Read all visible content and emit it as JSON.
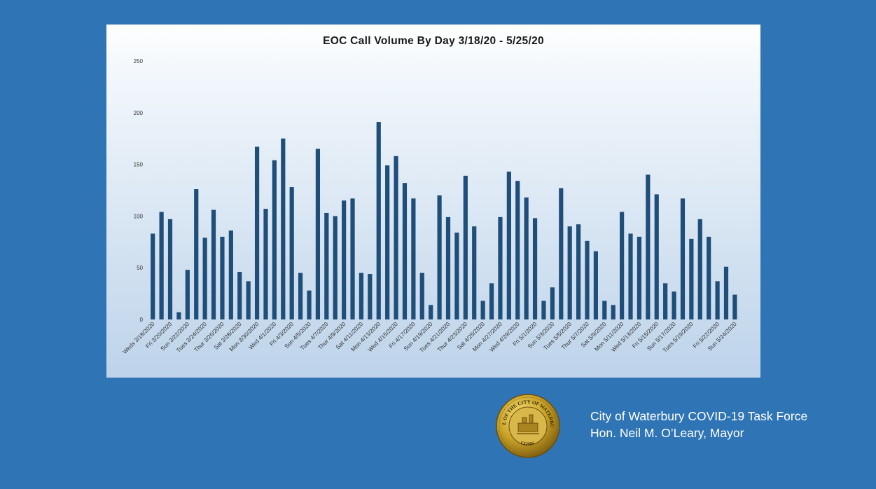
{
  "chart_data": {
    "type": "bar",
    "title": "EOC Call Volume By Day 3/18/20 - 5/25/20",
    "xlabel": "",
    "ylabel": "",
    "ylim": [
      0,
      250
    ],
    "yticks": [
      0,
      50,
      100,
      150,
      200,
      250
    ],
    "grid": false,
    "bar_color": "#1f4e79",
    "categories": [
      "3/18",
      "3/19",
      "3/20",
      "3/21",
      "3/22",
      "3/23",
      "3/24",
      "3/25",
      "3/26",
      "3/27",
      "3/28",
      "3/29",
      "3/30",
      "3/31",
      "4/1",
      "4/2",
      "4/3",
      "4/4",
      "4/5",
      "4/6",
      "4/7",
      "4/8",
      "4/9",
      "4/10",
      "4/11",
      "4/12",
      "4/13",
      "4/14",
      "4/15",
      "4/16",
      "4/17",
      "4/18",
      "4/19",
      "4/20",
      "4/21",
      "4/22",
      "4/23",
      "4/24",
      "4/25",
      "4/26",
      "4/27",
      "4/28",
      "4/29",
      "4/30",
      "5/1",
      "5/2",
      "5/3",
      "5/4",
      "5/5",
      "5/6",
      "5/7",
      "5/8",
      "5/9",
      "5/10",
      "5/11",
      "5/12",
      "5/13",
      "5/14",
      "5/15",
      "5/16",
      "5/17",
      "5/18",
      "5/19",
      "5/20",
      "5/21",
      "5/22",
      "5/23",
      "5/24",
      "5/25"
    ],
    "tick_labels": [
      "Weds 3/18/2020",
      "Fri 3/20/2020",
      "Sun 3/22/2020",
      "Tues 3/24/2020",
      "Thur 3/26/2020",
      "Sat 3/28/2020",
      "Mon 3/30/2020",
      "Wed 4/1/2020",
      "Fri 4/3/2020",
      "Sun 4/5/2020",
      "Tues 4/7/2020",
      "Thur 4/9/2020",
      "Sat 4/11/2020",
      "Mon 4/13/2020",
      "Wed 4/15/2020",
      "Fri 4/17/2020",
      "Sun 4/19/2020",
      "Tues 4/21/2020",
      "Thur 4/23/2020",
      "Sat 4/25/2020",
      "Mon 4/27/2020",
      "Wed 4/29/2020",
      "Fri 5/1/2020",
      "Sun 5/3/2020",
      "Tues 5/5/2020",
      "Thur 5/7/2020",
      "Sat 5/9/2020",
      "Mon 5/11/2020",
      "Wed 5/13/2020",
      "Fri 5/15/2020",
      "Sun 5/17/2020",
      "Tues 5/19/2020",
      "Fri 5/22/2020",
      "Sun 5/24/2020"
    ],
    "tick_label_index": [
      0,
      2,
      4,
      6,
      8,
      10,
      12,
      14,
      16,
      18,
      20,
      22,
      24,
      26,
      28,
      30,
      32,
      34,
      36,
      38,
      40,
      42,
      44,
      46,
      48,
      50,
      52,
      54,
      56,
      58,
      60,
      62,
      65,
      67
    ],
    "values": [
      83,
      104,
      97,
      7,
      48,
      126,
      79,
      106,
      80,
      86,
      46,
      37,
      167,
      107,
      154,
      175,
      128,
      45,
      28,
      165,
      103,
      100,
      115,
      117,
      45,
      44,
      191,
      149,
      158,
      132,
      117,
      45,
      14,
      120,
      99,
      84,
      139,
      90,
      18,
      35,
      99,
      143,
      134,
      118,
      98,
      18,
      31,
      127,
      90,
      92,
      76,
      66,
      18,
      14,
      104,
      83,
      80,
      140,
      121,
      35,
      27,
      117,
      78,
      97,
      80,
      37,
      51,
      24,
      0
    ]
  },
  "caption": {
    "line1": "City of Waterbury COVID-19 Task Force",
    "line2": "Hon. Neil M. O’Leary, Mayor"
  },
  "seal": {
    "text_top": "SEAL OF THE CITY OF WATERBURY",
    "text_bottom": "CONN."
  }
}
